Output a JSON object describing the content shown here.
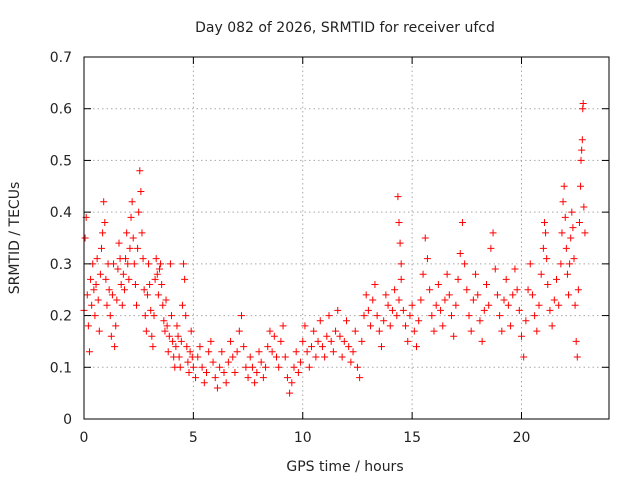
{
  "chart_data": {
    "type": "scatter",
    "title": "Day 082 of 2026, SRMTID for receiver ufcd",
    "xlabel": "GPS time / hours",
    "ylabel": "SRMTID / TECUs",
    "xlim": [
      0,
      24
    ],
    "ylim": [
      0,
      0.7
    ],
    "grid": true,
    "marker": "+",
    "marker_color": "#ff0000",
    "x_ticks": [
      0,
      5,
      10,
      15,
      20
    ],
    "x_tick_labels": [
      "0",
      "5",
      "10",
      "15",
      "20"
    ],
    "y_ticks": [
      0,
      0.1,
      0.2,
      0.3,
      0.4,
      0.5,
      0.6,
      0.7
    ],
    "y_tick_labels": [
      "0",
      "0.1",
      "0.2",
      "0.3",
      "0.4",
      "0.5",
      "0.6",
      "0.7"
    ],
    "series": [
      {
        "name": "SRMTID",
        "points": [
          [
            0.0,
            0.21
          ],
          [
            0.05,
            0.35
          ],
          [
            0.1,
            0.39
          ],
          [
            0.15,
            0.24
          ],
          [
            0.2,
            0.18
          ],
          [
            0.25,
            0.13
          ],
          [
            0.3,
            0.27
          ],
          [
            0.35,
            0.22
          ],
          [
            0.4,
            0.3
          ],
          [
            0.45,
            0.25
          ],
          [
            0.5,
            0.2
          ],
          [
            0.55,
            0.26
          ],
          [
            0.6,
            0.31
          ],
          [
            0.65,
            0.23
          ],
          [
            0.7,
            0.17
          ],
          [
            0.75,
            0.28
          ],
          [
            0.8,
            0.33
          ],
          [
            0.85,
            0.36
          ],
          [
            0.9,
            0.42
          ],
          [
            0.95,
            0.38
          ],
          [
            1.0,
            0.27
          ],
          [
            1.05,
            0.22
          ],
          [
            1.1,
            0.3
          ],
          [
            1.15,
            0.25
          ],
          [
            1.2,
            0.2
          ],
          [
            1.25,
            0.16
          ],
          [
            1.3,
            0.24
          ],
          [
            1.35,
            0.3
          ],
          [
            1.4,
            0.14
          ],
          [
            1.45,
            0.18
          ],
          [
            1.5,
            0.23
          ],
          [
            1.55,
            0.29
          ],
          [
            1.6,
            0.34
          ],
          [
            1.65,
            0.31
          ],
          [
            1.7,
            0.26
          ],
          [
            1.75,
            0.22
          ],
          [
            1.8,
            0.28
          ],
          [
            1.85,
            0.25
          ],
          [
            1.9,
            0.31
          ],
          [
            1.95,
            0.36
          ],
          [
            2.0,
            0.3
          ],
          [
            2.05,
            0.27
          ],
          [
            2.1,
            0.33
          ],
          [
            2.15,
            0.39
          ],
          [
            2.2,
            0.42
          ],
          [
            2.25,
            0.35
          ],
          [
            2.3,
            0.3
          ],
          [
            2.35,
            0.26
          ],
          [
            2.4,
            0.22
          ],
          [
            2.45,
            0.33
          ],
          [
            2.5,
            0.4
          ],
          [
            2.55,
            0.48
          ],
          [
            2.6,
            0.44
          ],
          [
            2.65,
            0.36
          ],
          [
            2.7,
            0.31
          ],
          [
            2.75,
            0.25
          ],
          [
            2.8,
            0.2
          ],
          [
            2.85,
            0.17
          ],
          [
            2.9,
            0.24
          ],
          [
            2.95,
            0.3
          ],
          [
            3.0,
            0.26
          ],
          [
            3.05,
            0.21
          ],
          [
            3.1,
            0.16
          ],
          [
            3.15,
            0.14
          ],
          [
            3.2,
            0.2
          ],
          [
            3.25,
            0.27
          ],
          [
            3.3,
            0.31
          ],
          [
            3.35,
            0.28
          ],
          [
            3.4,
            0.24
          ],
          [
            3.45,
            0.29
          ],
          [
            3.5,
            0.3
          ],
          [
            3.55,
            0.26
          ],
          [
            3.6,
            0.22
          ],
          [
            3.65,
            0.19
          ],
          [
            3.7,
            0.17
          ],
          [
            3.75,
            0.23
          ],
          [
            3.8,
            0.18
          ],
          [
            3.85,
            0.13
          ],
          [
            3.9,
            0.16
          ],
          [
            3.95,
            0.3
          ],
          [
            4.0,
            0.2
          ],
          [
            4.05,
            0.15
          ],
          [
            4.1,
            0.12
          ],
          [
            4.15,
            0.1
          ],
          [
            4.2,
            0.14
          ],
          [
            4.25,
            0.18
          ],
          [
            4.3,
            0.16
          ],
          [
            4.35,
            0.12
          ],
          [
            4.4,
            0.1
          ],
          [
            4.45,
            0.15
          ],
          [
            4.5,
            0.22
          ],
          [
            4.55,
            0.3
          ],
          [
            4.6,
            0.27
          ],
          [
            4.65,
            0.2
          ],
          [
            4.7,
            0.14
          ],
          [
            4.75,
            0.11
          ],
          [
            4.8,
            0.09
          ],
          [
            4.85,
            0.13
          ],
          [
            4.9,
            0.17
          ],
          [
            4.95,
            0.12
          ],
          [
            5.0,
            0.1
          ],
          [
            5.1,
            0.08
          ],
          [
            5.2,
            0.12
          ],
          [
            5.3,
            0.14
          ],
          [
            5.4,
            0.1
          ],
          [
            5.5,
            0.07
          ],
          [
            5.6,
            0.09
          ],
          [
            5.7,
            0.13
          ],
          [
            5.8,
            0.15
          ],
          [
            5.9,
            0.11
          ],
          [
            6.0,
            0.08
          ],
          [
            6.1,
            0.06
          ],
          [
            6.2,
            0.1
          ],
          [
            6.3,
            0.13
          ],
          [
            6.4,
            0.09
          ],
          [
            6.5,
            0.07
          ],
          [
            6.6,
            0.11
          ],
          [
            6.7,
            0.15
          ],
          [
            6.8,
            0.12
          ],
          [
            6.9,
            0.09
          ],
          [
            7.0,
            0.13
          ],
          [
            7.1,
            0.17
          ],
          [
            7.2,
            0.2
          ],
          [
            7.3,
            0.14
          ],
          [
            7.4,
            0.1
          ],
          [
            7.5,
            0.08
          ],
          [
            7.6,
            0.12
          ],
          [
            7.7,
            0.1
          ],
          [
            7.8,
            0.07
          ],
          [
            7.9,
            0.09
          ],
          [
            8.0,
            0.13
          ],
          [
            8.1,
            0.11
          ],
          [
            8.2,
            0.08
          ],
          [
            8.3,
            0.1
          ],
          [
            8.4,
            0.14
          ],
          [
            8.5,
            0.17
          ],
          [
            8.6,
            0.13
          ],
          [
            8.7,
            0.16
          ],
          [
            8.8,
            0.12
          ],
          [
            8.9,
            0.1
          ],
          [
            9.0,
            0.15
          ],
          [
            9.1,
            0.18
          ],
          [
            9.2,
            0.12
          ],
          [
            9.3,
            0.08
          ],
          [
            9.4,
            0.05
          ],
          [
            9.5,
            0.07
          ],
          [
            9.6,
            0.1
          ],
          [
            9.7,
            0.13
          ],
          [
            9.8,
            0.09
          ],
          [
            9.9,
            0.11
          ],
          [
            10.0,
            0.15
          ],
          [
            10.1,
            0.18
          ],
          [
            10.2,
            0.13
          ],
          [
            10.3,
            0.1
          ],
          [
            10.4,
            0.14
          ],
          [
            10.5,
            0.17
          ],
          [
            10.6,
            0.12
          ],
          [
            10.7,
            0.15
          ],
          [
            10.8,
            0.19
          ],
          [
            10.9,
            0.14
          ],
          [
            11.0,
            0.12
          ],
          [
            11.1,
            0.16
          ],
          [
            11.2,
            0.2
          ],
          [
            11.3,
            0.15
          ],
          [
            11.4,
            0.13
          ],
          [
            11.5,
            0.17
          ],
          [
            11.6,
            0.21
          ],
          [
            11.7,
            0.16
          ],
          [
            11.8,
            0.12
          ],
          [
            11.9,
            0.15
          ],
          [
            12.0,
            0.19
          ],
          [
            12.1,
            0.14
          ],
          [
            12.2,
            0.11
          ],
          [
            12.3,
            0.13
          ],
          [
            12.4,
            0.17
          ],
          [
            12.5,
            0.1
          ],
          [
            12.6,
            0.08
          ],
          [
            12.7,
            0.15
          ],
          [
            12.8,
            0.2
          ],
          [
            12.9,
            0.24
          ],
          [
            13.0,
            0.21
          ],
          [
            13.1,
            0.18
          ],
          [
            13.2,
            0.23
          ],
          [
            13.3,
            0.26
          ],
          [
            13.4,
            0.2
          ],
          [
            13.5,
            0.17
          ],
          [
            13.6,
            0.14
          ],
          [
            13.7,
            0.19
          ],
          [
            13.8,
            0.24
          ],
          [
            13.9,
            0.22
          ],
          [
            14.0,
            0.18
          ],
          [
            14.1,
            0.21
          ],
          [
            14.2,
            0.25
          ],
          [
            14.3,
            0.2
          ],
          [
            14.4,
            0.23
          ],
          [
            14.5,
            0.27
          ],
          [
            14.6,
            0.21
          ],
          [
            14.7,
            0.18
          ],
          [
            14.8,
            0.15
          ],
          [
            14.9,
            0.2
          ],
          [
            14.35,
            0.43
          ],
          [
            14.4,
            0.38
          ],
          [
            14.5,
            0.3
          ],
          [
            14.45,
            0.34
          ],
          [
            15.0,
            0.22
          ],
          [
            15.1,
            0.17
          ],
          [
            15.2,
            0.14
          ],
          [
            15.3,
            0.19
          ],
          [
            15.4,
            0.23
          ],
          [
            15.5,
            0.28
          ],
          [
            15.6,
            0.35
          ],
          [
            15.7,
            0.31
          ],
          [
            15.8,
            0.25
          ],
          [
            15.9,
            0.2
          ],
          [
            16.0,
            0.17
          ],
          [
            16.1,
            0.22
          ],
          [
            16.2,
            0.26
          ],
          [
            16.3,
            0.21
          ],
          [
            16.4,
            0.18
          ],
          [
            16.5,
            0.23
          ],
          [
            16.6,
            0.28
          ],
          [
            16.7,
            0.24
          ],
          [
            16.8,
            0.2
          ],
          [
            16.9,
            0.16
          ],
          [
            17.0,
            0.22
          ],
          [
            17.1,
            0.27
          ],
          [
            17.2,
            0.32
          ],
          [
            17.3,
            0.38
          ],
          [
            17.4,
            0.3
          ],
          [
            17.5,
            0.25
          ],
          [
            17.6,
            0.2
          ],
          [
            17.7,
            0.17
          ],
          [
            17.8,
            0.23
          ],
          [
            17.9,
            0.28
          ],
          [
            18.0,
            0.24
          ],
          [
            18.1,
            0.19
          ],
          [
            18.2,
            0.15
          ],
          [
            18.3,
            0.21
          ],
          [
            18.4,
            0.26
          ],
          [
            18.5,
            0.22
          ],
          [
            18.6,
            0.33
          ],
          [
            18.7,
            0.36
          ],
          [
            18.8,
            0.29
          ],
          [
            18.9,
            0.24
          ],
          [
            19.0,
            0.2
          ],
          [
            19.1,
            0.17
          ],
          [
            19.2,
            0.23
          ],
          [
            19.3,
            0.27
          ],
          [
            19.4,
            0.22
          ],
          [
            19.5,
            0.18
          ],
          [
            19.6,
            0.24
          ],
          [
            19.7,
            0.29
          ],
          [
            19.8,
            0.25
          ],
          [
            19.9,
            0.21
          ],
          [
            20.0,
            0.16
          ],
          [
            20.1,
            0.12
          ],
          [
            20.2,
            0.19
          ],
          [
            20.3,
            0.25
          ],
          [
            20.4,
            0.3
          ],
          [
            20.5,
            0.24
          ],
          [
            20.6,
            0.2
          ],
          [
            20.7,
            0.17
          ],
          [
            20.8,
            0.22
          ],
          [
            20.9,
            0.28
          ],
          [
            21.0,
            0.33
          ],
          [
            21.05,
            0.38
          ],
          [
            21.1,
            0.36
          ],
          [
            21.15,
            0.31
          ],
          [
            21.2,
            0.26
          ],
          [
            21.3,
            0.21
          ],
          [
            21.4,
            0.18
          ],
          [
            21.5,
            0.23
          ],
          [
            21.6,
            0.27
          ],
          [
            21.7,
            0.22
          ],
          [
            21.8,
            0.3
          ],
          [
            21.85,
            0.36
          ],
          [
            21.9,
            0.42
          ],
          [
            21.95,
            0.45
          ],
          [
            22.0,
            0.39
          ],
          [
            22.05,
            0.33
          ],
          [
            22.1,
            0.28
          ],
          [
            22.15,
            0.24
          ],
          [
            22.2,
            0.3
          ],
          [
            22.25,
            0.35
          ],
          [
            22.3,
            0.4
          ],
          [
            22.35,
            0.37
          ],
          [
            22.4,
            0.31
          ],
          [
            22.45,
            0.22
          ],
          [
            22.5,
            0.15
          ],
          [
            22.55,
            0.12
          ],
          [
            22.6,
            0.25
          ],
          [
            22.65,
            0.38
          ],
          [
            22.7,
            0.45
          ],
          [
            22.72,
            0.5
          ],
          [
            22.75,
            0.52
          ],
          [
            22.78,
            0.54
          ],
          [
            22.8,
            0.6
          ],
          [
            22.82,
            0.61
          ],
          [
            22.85,
            0.41
          ],
          [
            22.9,
            0.36
          ]
        ]
      }
    ]
  }
}
